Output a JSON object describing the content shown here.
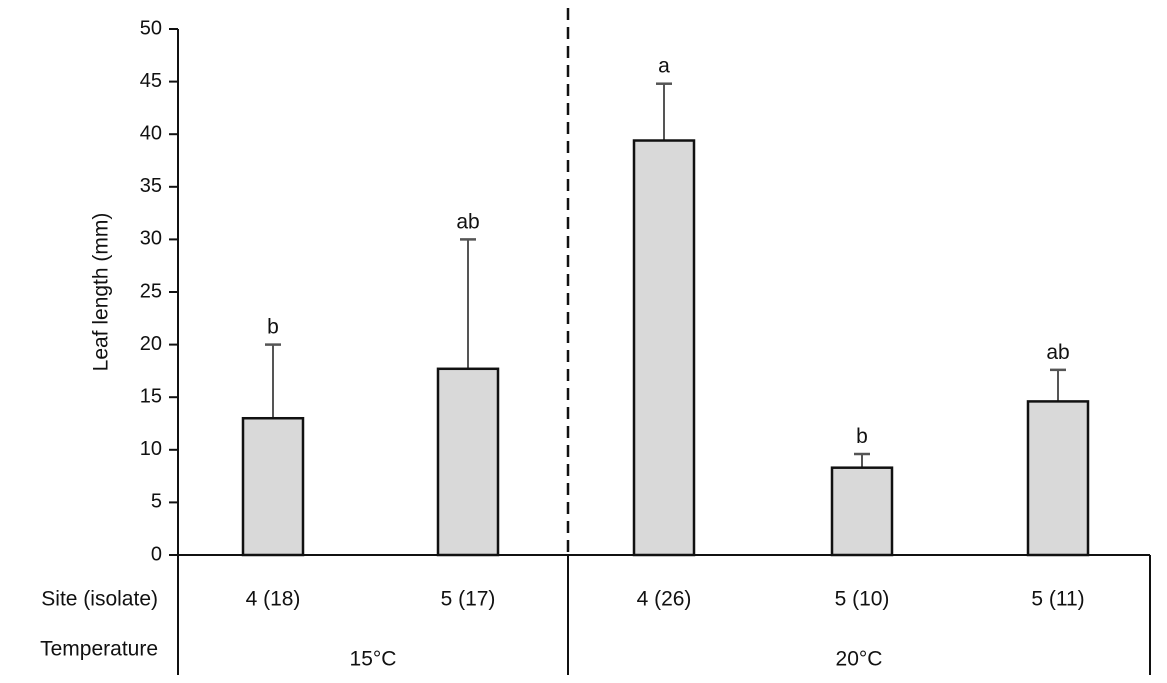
{
  "chart_data": {
    "type": "bar",
    "ylabel": "Leaf length (mm)",
    "ylim": [
      0,
      50
    ],
    "yticks": [
      0,
      5,
      10,
      15,
      20,
      25,
      30,
      35,
      40,
      45,
      50
    ],
    "grid": false,
    "row_labels": {
      "site": "Site (isolate)",
      "temperature": "Temperature"
    },
    "groups": [
      {
        "temperature": "15°C",
        "start": 0,
        "end": 1
      },
      {
        "temperature": "20°C",
        "start": 2,
        "end": 4
      }
    ],
    "categories": [
      "4 (18)",
      "5 (17)",
      "4 (26)",
      "5 (10)",
      "5 (11)"
    ],
    "values": [
      13,
      17.7,
      39.4,
      8.3,
      14.6
    ],
    "error_upper": [
      20,
      30,
      44.8,
      9.6,
      17.6
    ],
    "significance": [
      "b",
      "ab",
      "a",
      "b",
      "ab"
    ],
    "colors": {
      "bar_fill": "#d9d9d9",
      "bar_stroke": "#111111",
      "error_bar": "#555555"
    }
  }
}
